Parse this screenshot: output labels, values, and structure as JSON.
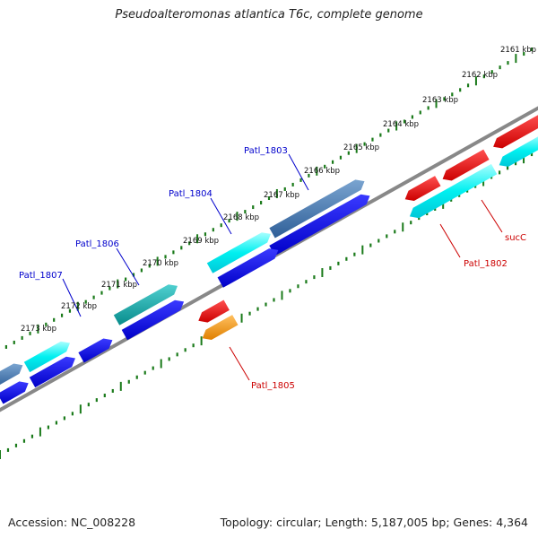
{
  "title": "Pseudoalteromonas atlantica T6c, complete genome",
  "accession": "Accession: NC_008228",
  "summary": "Topology: circular; Length: 5,187,005 bp; Genes: 4,364",
  "ticks": [
    "2161 kbp",
    "2162 kbp",
    "2163 kbp",
    "2164 kbp",
    "2165 kbp",
    "2166 kbp",
    "2167 kbp",
    "2168 kbp",
    "2169 kbp",
    "2170 kbp",
    "2171 kbp",
    "2172 kbp",
    "2173 kbp"
  ],
  "gene_labels": {
    "patl_1803": "Patl_1803",
    "patl_1804": "Patl_1804",
    "patl_1806": "Patl_1806",
    "patl_1807": "Patl_1807",
    "patl_1802": "Patl_1802",
    "patl_1805": "Patl_1805",
    "succ": "sucC"
  },
  "colors": {
    "forward_label": "#0000cc",
    "reverse_label": "#cc0000",
    "backbone": "#808080",
    "tick": "#1a7a1a",
    "blue": "#0000e6",
    "cyan": "#00f0f0",
    "steel": "#4a7ab0",
    "teal": "#10a8a8",
    "red": "#ee0000",
    "orange": "#ff9900"
  }
}
